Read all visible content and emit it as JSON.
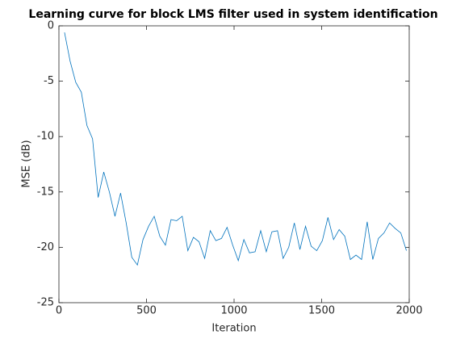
{
  "chart_data": {
    "type": "line",
    "title": "Learning curve for block LMS filter used in system identification",
    "xlabel": "Iteration",
    "ylabel": "MSE (dB)",
    "x": [
      32,
      64,
      96,
      128,
      160,
      192,
      224,
      256,
      288,
      320,
      352,
      384,
      416,
      448,
      480,
      512,
      544,
      576,
      608,
      640,
      672,
      704,
      736,
      768,
      800,
      832,
      864,
      896,
      928,
      960,
      992,
      1024,
      1056,
      1088,
      1120,
      1152,
      1184,
      1216,
      1248,
      1280,
      1312,
      1344,
      1376,
      1408,
      1440,
      1472,
      1504,
      1536,
      1568,
      1600,
      1632,
      1664,
      1696,
      1728,
      1760,
      1792,
      1824,
      1856,
      1888,
      1920,
      1952,
      1984
    ],
    "series": [
      {
        "name": "MSE",
        "color": "#0072bd",
        "values": [
          -0.6,
          -3.2,
          -5.1,
          -6.0,
          -9.0,
          -10.2,
          -15.5,
          -13.2,
          -15.0,
          -17.2,
          -15.1,
          -17.8,
          -20.9,
          -21.6,
          -19.3,
          -18.1,
          -17.2,
          -19.0,
          -19.8,
          -17.5,
          -17.6,
          -17.2,
          -20.3,
          -19.1,
          -19.5,
          -21.0,
          -18.5,
          -19.4,
          -19.2,
          -18.2,
          -19.8,
          -21.2,
          -19.3,
          -20.5,
          -20.4,
          -18.5,
          -20.4,
          -18.6,
          -18.5,
          -21.0,
          -20.0,
          -17.8,
          -20.2,
          -18.1,
          -19.9,
          -20.3,
          -19.4,
          -17.3,
          -19.3,
          -18.4,
          -19.0,
          -21.1,
          -20.7,
          -21.1,
          -17.7,
          -21.1,
          -19.2,
          -18.7,
          -17.8,
          -18.3,
          -18.7,
          -20.3
        ]
      }
    ],
    "xlim": [
      0,
      2000
    ],
    "xticks": [
      0,
      500,
      1000,
      1500,
      2000
    ],
    "ylim": [
      -25,
      0
    ],
    "yticks": [
      -25,
      -20,
      -15,
      -10,
      -5,
      0
    ],
    "grid": false
  }
}
